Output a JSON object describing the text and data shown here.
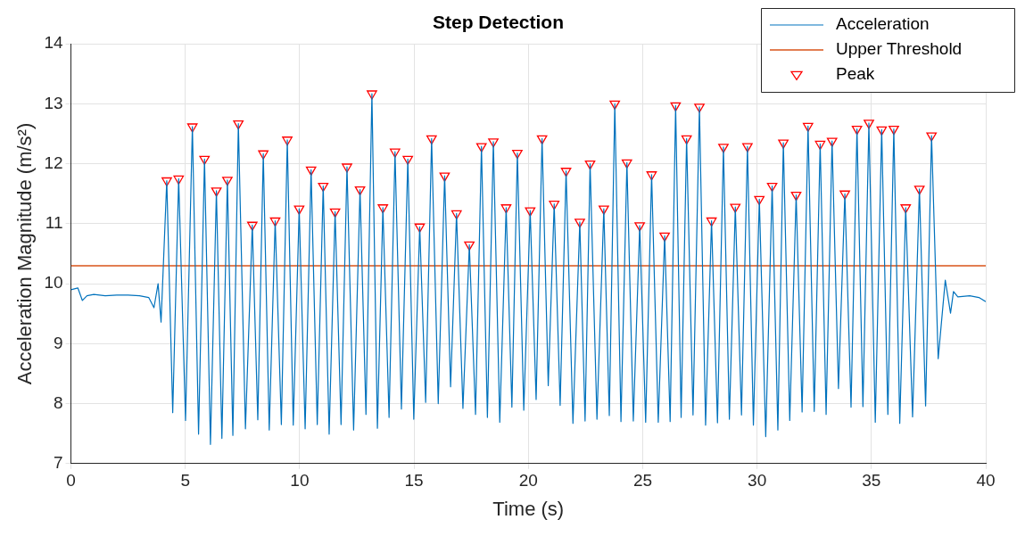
{
  "chart_data": {
    "type": "line",
    "title": "Step Detection",
    "xlabel": "Time (s)",
    "ylabel": "Acceleration Magnitude (m/s²)",
    "xlim": [
      0,
      40
    ],
    "xticks": [
      0,
      5,
      10,
      15,
      20,
      25,
      30,
      35,
      40
    ],
    "ylim": [
      7,
      14
    ],
    "yticks": [
      7,
      8,
      9,
      10,
      11,
      12,
      13,
      14
    ],
    "grid": true,
    "legend": "top right",
    "ref_lines": [
      {
        "axis": "y",
        "value": 10.3,
        "label": "Upper Threshold",
        "color": "#d95319"
      }
    ],
    "series": [
      {
        "name": "Acceleration",
        "color": "#0072bd",
        "x": [
          0,
          0.3,
          0.5,
          0.7,
          1.0,
          1.5,
          2.0,
          2.5,
          3.0,
          3.4,
          3.63,
          3.81,
          3.94,
          4.19,
          4.45,
          4.71,
          5.01,
          5.31,
          5.58,
          5.84,
          6.1,
          6.36,
          6.6,
          6.84,
          7.08,
          7.32,
          7.63,
          7.93,
          8.17,
          8.41,
          8.67,
          8.93,
          9.2,
          9.46,
          9.72,
          9.98,
          10.24,
          10.5,
          10.77,
          11.03,
          11.29,
          11.55,
          11.81,
          12.07,
          12.36,
          12.64,
          12.9,
          13.16,
          13.4,
          13.64,
          13.91,
          14.17,
          14.45,
          14.73,
          14.99,
          15.25,
          15.51,
          15.77,
          16.06,
          16.34,
          16.6,
          16.86,
          17.14,
          17.42,
          17.69,
          17.95,
          18.21,
          18.47,
          18.75,
          19.03,
          19.28,
          19.52,
          19.8,
          20.08,
          20.34,
          20.6,
          20.87,
          21.13,
          21.39,
          21.65,
          21.95,
          22.25,
          22.48,
          22.7,
          23.0,
          23.3,
          23.54,
          23.78,
          24.05,
          24.31,
          24.59,
          24.87,
          25.13,
          25.39,
          25.68,
          25.96,
          26.2,
          26.44,
          26.68,
          26.92,
          27.2,
          27.48,
          27.75,
          28.01,
          28.27,
          28.53,
          28.79,
          29.05,
          29.32,
          29.58,
          29.84,
          30.1,
          30.38,
          30.66,
          30.91,
          31.15,
          31.43,
          31.71,
          31.97,
          32.23,
          32.5,
          32.76,
          33.02,
          33.28,
          33.56,
          33.84,
          34.11,
          34.37,
          34.63,
          34.89,
          35.17,
          35.45,
          35.72,
          35.98,
          36.24,
          36.5,
          36.8,
          37.1,
          37.37,
          37.63,
          37.92,
          38.23,
          38.46,
          38.59,
          38.78,
          39.3,
          39.7,
          40
        ],
        "values": [
          9.9,
          9.93,
          9.72,
          9.8,
          9.82,
          9.8,
          9.81,
          9.81,
          9.8,
          9.77,
          9.6,
          10.0,
          9.36,
          11.72,
          7.85,
          11.75,
          7.72,
          12.62,
          7.49,
          12.08,
          7.32,
          11.55,
          7.42,
          11.73,
          7.47,
          12.67,
          7.58,
          10.98,
          7.73,
          12.17,
          7.56,
          11.05,
          7.65,
          12.4,
          7.64,
          11.25,
          7.58,
          11.9,
          7.65,
          11.63,
          7.49,
          11.2,
          7.65,
          11.95,
          7.56,
          11.57,
          7.82,
          13.17,
          7.59,
          11.27,
          7.77,
          12.2,
          7.91,
          12.08,
          7.74,
          10.95,
          8.02,
          12.42,
          8.0,
          11.8,
          8.28,
          11.17,
          7.92,
          10.65,
          7.82,
          12.29,
          7.77,
          12.37,
          7.69,
          11.27,
          7.94,
          12.18,
          7.89,
          11.22,
          8.07,
          12.42,
          8.3,
          11.33,
          7.97,
          11.88,
          7.67,
          11.03,
          7.71,
          12.0,
          7.74,
          11.25,
          7.8,
          13.0,
          7.7,
          12.02,
          7.71,
          10.97,
          7.69,
          11.82,
          7.69,
          10.8,
          7.7,
          12.97,
          7.77,
          12.42,
          7.81,
          12.95,
          7.64,
          11.05,
          7.68,
          12.28,
          7.74,
          11.28,
          7.81,
          12.29,
          7.64,
          11.41,
          7.45,
          11.63,
          7.56,
          12.35,
          7.72,
          11.48,
          7.86,
          12.63,
          7.87,
          12.33,
          7.82,
          12.38,
          8.25,
          11.5,
          7.94,
          12.58,
          7.95,
          12.68,
          7.69,
          12.57,
          7.82,
          12.58,
          7.67,
          11.27,
          7.78,
          11.58,
          7.96,
          12.47,
          8.75,
          10.06,
          9.51,
          9.87,
          9.78,
          9.8,
          9.77,
          9.7
        ]
      },
      {
        "name": "Peak",
        "type": "scatter",
        "color": "#ff0000",
        "marker": "triangle",
        "x": [
          4.19,
          4.71,
          5.31,
          5.84,
          6.36,
          6.84,
          7.32,
          7.93,
          8.41,
          8.93,
          9.46,
          9.98,
          10.5,
          11.03,
          11.55,
          12.07,
          12.64,
          13.16,
          13.64,
          14.17,
          14.73,
          15.25,
          15.77,
          16.34,
          16.86,
          17.42,
          17.95,
          18.47,
          19.03,
          19.52,
          20.08,
          20.6,
          21.13,
          21.65,
          22.25,
          22.7,
          23.3,
          23.78,
          24.31,
          24.87,
          25.39,
          25.96,
          26.44,
          26.92,
          27.48,
          28.01,
          28.53,
          29.05,
          29.58,
          30.1,
          30.66,
          31.15,
          31.71,
          32.23,
          32.76,
          33.28,
          33.84,
          34.37,
          34.89,
          35.45,
          35.98,
          36.5,
          37.1,
          37.63
        ],
        "values": [
          11.72,
          11.75,
          12.62,
          12.08,
          11.55,
          11.73,
          12.67,
          10.98,
          12.17,
          11.05,
          12.4,
          11.25,
          11.9,
          11.63,
          11.2,
          11.95,
          11.57,
          13.17,
          11.27,
          12.2,
          12.08,
          10.95,
          12.42,
          11.8,
          11.17,
          10.65,
          12.29,
          12.37,
          11.27,
          12.18,
          11.22,
          12.42,
          11.33,
          11.88,
          11.03,
          12.0,
          11.25,
          13.0,
          12.02,
          10.97,
          11.82,
          10.8,
          12.97,
          12.42,
          12.95,
          11.05,
          12.28,
          11.28,
          12.29,
          11.41,
          11.63,
          12.35,
          11.48,
          12.63,
          12.33,
          12.38,
          11.5,
          12.58,
          12.68,
          12.57,
          12.58,
          11.27,
          11.58,
          12.47
        ]
      }
    ]
  }
}
